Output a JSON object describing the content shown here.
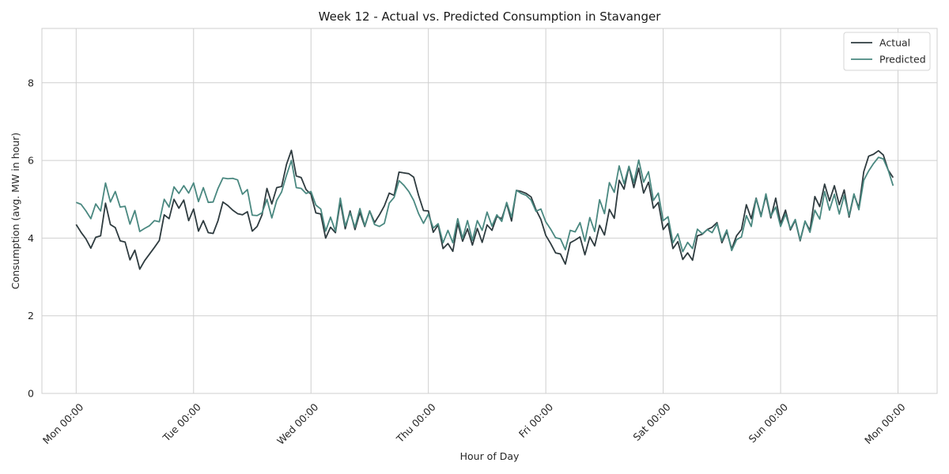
{
  "chart_data": {
    "type": "line",
    "title": "Week 12 - Actual vs. Predicted Consumption in Stavanger",
    "xlabel": "Hour of Day",
    "ylabel": "Consumption (avg. MW in hour)",
    "xlim": [
      -7,
      176
    ],
    "ylim": [
      0,
      9.4
    ],
    "y_ticks": [
      0,
      2,
      4,
      6,
      8
    ],
    "x_ticks": [
      {
        "value": 0,
        "label": "Mon 00:00"
      },
      {
        "value": 24,
        "label": "Tue 00:00"
      },
      {
        "value": 48,
        "label": "Wed 00:00"
      },
      {
        "value": 72,
        "label": "Thu 00:00"
      },
      {
        "value": 96,
        "label": "Fri 00:00"
      },
      {
        "value": 120,
        "label": "Sat 00:00"
      },
      {
        "value": 144,
        "label": "Sun 00:00"
      },
      {
        "value": 168,
        "label": "Mon 00:00"
      }
    ],
    "grid": true,
    "legend_position": "top-right",
    "series": [
      {
        "name": "Actual",
        "color": "#2e3b3f",
        "values": [
          4.35,
          4.15,
          3.98,
          3.74,
          4.02,
          4.06,
          4.9,
          4.35,
          4.27,
          3.93,
          3.9,
          3.44,
          3.69,
          3.2,
          3.42,
          3.59,
          3.76,
          3.94,
          4.6,
          4.5,
          5.0,
          4.77,
          4.98,
          4.45,
          4.75,
          4.18,
          4.45,
          4.14,
          4.12,
          4.45,
          4.93,
          4.84,
          4.72,
          4.63,
          4.6,
          4.68,
          4.18,
          4.3,
          4.6,
          5.28,
          4.88,
          5.3,
          5.33,
          5.9,
          6.26,
          5.6,
          5.56,
          5.25,
          5.13,
          4.65,
          4.62,
          4.0,
          4.28,
          4.14,
          4.94,
          4.24,
          4.7,
          4.22,
          4.66,
          4.3,
          4.7,
          4.4,
          4.6,
          4.83,
          5.16,
          5.1,
          5.7,
          5.68,
          5.66,
          5.57,
          5.1,
          4.71,
          4.7,
          4.15,
          4.34,
          3.73,
          3.86,
          3.66,
          4.38,
          3.92,
          4.24,
          3.82,
          4.25,
          3.89,
          4.34,
          4.2,
          4.56,
          4.5,
          4.89,
          4.44,
          5.23,
          5.2,
          5.15,
          5.06,
          4.73,
          4.48,
          4.07,
          3.86,
          3.62,
          3.59,
          3.33,
          3.88,
          3.95,
          4.03,
          3.57,
          4.03,
          3.8,
          4.33,
          4.08,
          4.74,
          4.51,
          5.49,
          5.26,
          5.84,
          5.3,
          5.8,
          5.16,
          5.44,
          4.77,
          4.92,
          4.22,
          4.38,
          3.73,
          3.91,
          3.45,
          3.62,
          3.43,
          4.06,
          4.1,
          4.22,
          4.28,
          4.4,
          3.88,
          4.17,
          3.72,
          4.06,
          4.22,
          4.86,
          4.5,
          5.03,
          4.58,
          5.09,
          4.52,
          5.03,
          4.37,
          4.72,
          4.21,
          4.46,
          3.93,
          4.43,
          4.2,
          5.07,
          4.81,
          5.39,
          4.96,
          5.35,
          4.86,
          5.24,
          4.54,
          5.12,
          4.78,
          5.71,
          6.11,
          6.16,
          6.25,
          6.14,
          5.75,
          5.56
        ]
      },
      {
        "name": "Predicted",
        "color": "#4a8880",
        "values": [
          4.92,
          4.87,
          4.7,
          4.5,
          4.88,
          4.7,
          5.42,
          4.93,
          5.2,
          4.8,
          4.82,
          4.36,
          4.71,
          4.17,
          4.25,
          4.32,
          4.45,
          4.42,
          5.0,
          4.8,
          5.32,
          5.15,
          5.35,
          5.16,
          5.42,
          4.94,
          5.3,
          4.92,
          4.93,
          5.28,
          5.55,
          5.53,
          5.54,
          5.5,
          5.13,
          5.25,
          4.59,
          4.58,
          4.65,
          5.0,
          4.52,
          4.97,
          5.19,
          5.62,
          6.0,
          5.3,
          5.28,
          5.15,
          5.2,
          4.85,
          4.75,
          4.18,
          4.54,
          4.18,
          5.03,
          4.31,
          4.65,
          4.28,
          4.76,
          4.32,
          4.7,
          4.35,
          4.3,
          4.38,
          4.9,
          5.05,
          5.48,
          5.36,
          5.2,
          4.97,
          4.63,
          4.38,
          4.62,
          4.26,
          4.37,
          3.88,
          4.2,
          3.88,
          4.5,
          3.99,
          4.45,
          3.94,
          4.45,
          4.2,
          4.67,
          4.31,
          4.6,
          4.43,
          4.92,
          4.54,
          5.23,
          5.15,
          5.1,
          4.98,
          4.69,
          4.75,
          4.42,
          4.23,
          4.01,
          3.98,
          3.7,
          4.2,
          4.16,
          4.4,
          3.92,
          4.53,
          4.17,
          4.99,
          4.63,
          5.43,
          5.18,
          5.86,
          5.4,
          5.85,
          5.43,
          6.01,
          5.44,
          5.71,
          4.97,
          5.16,
          4.45,
          4.55,
          3.88,
          4.11,
          3.65,
          3.89,
          3.73,
          4.23,
          4.11,
          4.22,
          4.14,
          4.37,
          3.93,
          4.21,
          3.68,
          3.96,
          4.03,
          4.58,
          4.3,
          5.02,
          4.55,
          5.14,
          4.56,
          4.8,
          4.3,
          4.62,
          4.24,
          4.48,
          3.95,
          4.44,
          4.15,
          4.72,
          4.49,
          5.2,
          4.72,
          5.13,
          4.62,
          5.1,
          4.58,
          5.14,
          4.73,
          5.49,
          5.73,
          5.92,
          6.08,
          6.04,
          5.75,
          5.35
        ]
      }
    ]
  }
}
